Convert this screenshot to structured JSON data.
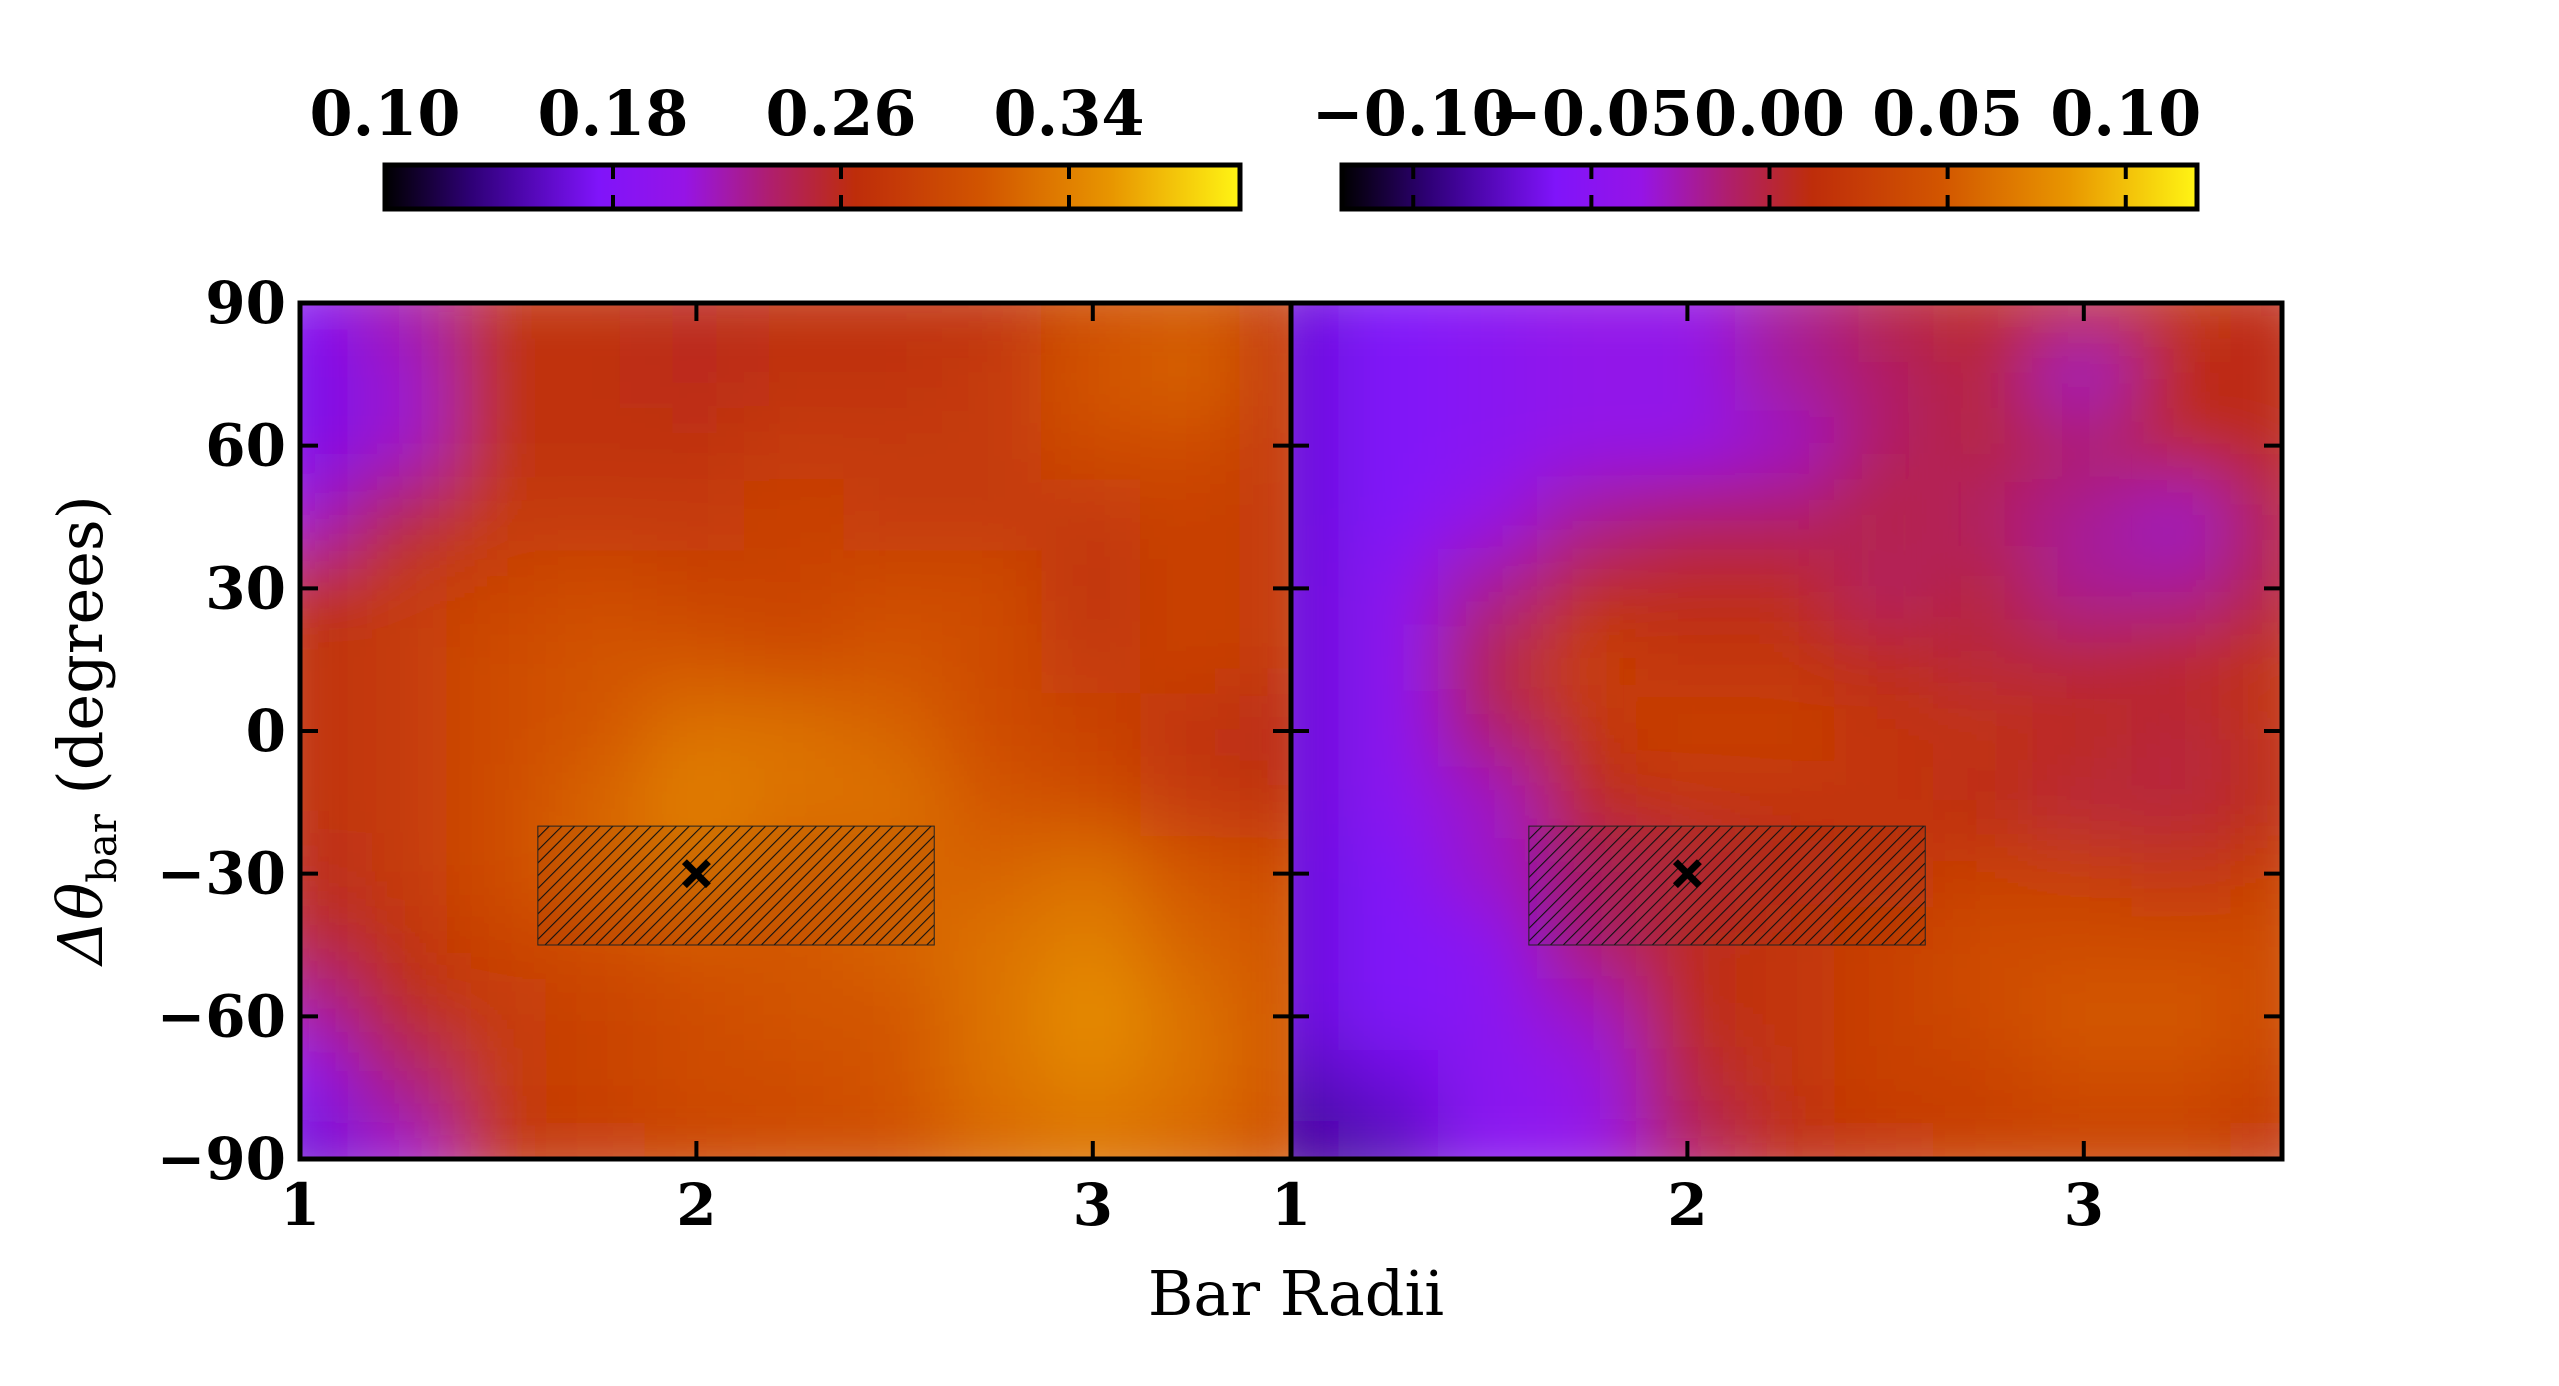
{
  "figure": {
    "xlabel": "Bar Radii",
    "ylabel_main": "Δθ",
    "ylabel_sub": "bar",
    "ylabel_units": " (degrees)"
  },
  "chart_data": [
    {
      "type": "heatmap",
      "panel": "left",
      "xlim": [
        1,
        3.5
      ],
      "ylim": [
        -90,
        90
      ],
      "xticks": [
        1,
        2,
        3
      ],
      "yticks": [
        90,
        60,
        30,
        0,
        -30,
        -60,
        -90
      ],
      "x_tick_labels": [
        "1",
        "2",
        "3"
      ],
      "y_tick_labels": [
        "90",
        "60",
        "30",
        "0",
        "−30",
        "−60",
        "−90"
      ],
      "xlabel": "Bar Radii",
      "ylabel": "Δθbar (degrees)",
      "colormap": "gnuplot",
      "colorbar": {
        "range": [
          0.1,
          0.4
        ],
        "ticks": [
          0.1,
          0.18,
          0.26,
          0.34
        ],
        "tick_labels": [
          "0.10",
          "0.18",
          "0.26",
          "0.34"
        ],
        "location": "top"
      },
      "marker": {
        "x": 2.0,
        "y": -30,
        "symbol": "x"
      },
      "hatched_region": {
        "x": [
          1.6,
          2.6
        ],
        "y": [
          -45,
          -20
        ]
      },
      "x": [
        1.0,
        1.25,
        1.5,
        1.75,
        2.0,
        2.25,
        2.5,
        2.75,
        3.0,
        3.25,
        3.5
      ],
      "y": [
        90,
        75,
        60,
        45,
        30,
        15,
        0,
        -15,
        -30,
        -45,
        -60,
        -75,
        -90
      ],
      "z": [
        [
          0.18,
          0.22,
          0.27,
          0.27,
          0.26,
          0.27,
          0.27,
          0.27,
          0.3,
          0.31,
          0.28
        ],
        [
          0.17,
          0.21,
          0.27,
          0.27,
          0.26,
          0.27,
          0.27,
          0.28,
          0.31,
          0.32,
          0.28
        ],
        [
          0.17,
          0.21,
          0.27,
          0.27,
          0.27,
          0.28,
          0.28,
          0.28,
          0.3,
          0.3,
          0.28
        ],
        [
          0.21,
          0.25,
          0.28,
          0.28,
          0.28,
          0.29,
          0.28,
          0.28,
          0.28,
          0.29,
          0.28
        ],
        [
          0.26,
          0.28,
          0.29,
          0.3,
          0.29,
          0.29,
          0.3,
          0.3,
          0.27,
          0.29,
          0.28
        ],
        [
          0.27,
          0.28,
          0.3,
          0.31,
          0.31,
          0.3,
          0.31,
          0.3,
          0.28,
          0.29,
          0.28
        ],
        [
          0.27,
          0.28,
          0.3,
          0.31,
          0.33,
          0.33,
          0.32,
          0.3,
          0.29,
          0.27,
          0.26
        ],
        [
          0.27,
          0.28,
          0.3,
          0.32,
          0.34,
          0.33,
          0.33,
          0.31,
          0.3,
          0.28,
          0.27
        ],
        [
          0.26,
          0.28,
          0.3,
          0.32,
          0.33,
          0.32,
          0.32,
          0.32,
          0.33,
          0.31,
          0.3
        ],
        [
          0.25,
          0.27,
          0.29,
          0.3,
          0.31,
          0.31,
          0.32,
          0.33,
          0.34,
          0.32,
          0.31
        ],
        [
          0.22,
          0.26,
          0.28,
          0.29,
          0.3,
          0.31,
          0.31,
          0.33,
          0.35,
          0.33,
          0.31
        ],
        [
          0.18,
          0.23,
          0.28,
          0.29,
          0.3,
          0.3,
          0.31,
          0.33,
          0.34,
          0.33,
          0.31
        ],
        [
          0.16,
          0.21,
          0.27,
          0.28,
          0.29,
          0.3,
          0.3,
          0.32,
          0.33,
          0.32,
          0.3
        ]
      ]
    },
    {
      "type": "heatmap",
      "panel": "right",
      "xlim": [
        1,
        3.5
      ],
      "ylim": [
        -90,
        90
      ],
      "xticks": [
        1,
        2,
        3
      ],
      "yticks": [
        90,
        60,
        30,
        0,
        -30,
        -60,
        -90
      ],
      "x_tick_labels": [
        "1",
        "2",
        "3"
      ],
      "xlabel": "Bar Radii",
      "colormap": "gnuplot",
      "colorbar": {
        "range": [
          -0.12,
          0.12
        ],
        "ticks": [
          -0.1,
          -0.05,
          0.0,
          0.05,
          0.1
        ],
        "tick_labels": [
          "−0.10",
          "−0.05",
          "0.00",
          "0.05",
          "0.10"
        ],
        "location": "top"
      },
      "marker": {
        "x": 2.0,
        "y": -30,
        "symbol": "x"
      },
      "hatched_region": {
        "x": [
          1.6,
          2.6
        ],
        "y": [
          -45,
          -20
        ]
      },
      "x": [
        1.0,
        1.25,
        1.5,
        1.75,
        2.0,
        2.25,
        2.5,
        2.75,
        3.0,
        3.25,
        3.5
      ],
      "y": [
        90,
        75,
        60,
        45,
        30,
        15,
        0,
        -15,
        -30,
        -45,
        -60,
        -75,
        -90
      ],
      "z": [
        [
          -0.07,
          -0.06,
          -0.05,
          -0.04,
          -0.04,
          -0.02,
          0.0,
          0.01,
          0.02,
          0.02,
          0.01
        ],
        [
          -0.07,
          -0.06,
          -0.05,
          -0.04,
          -0.04,
          -0.02,
          -0.01,
          0.0,
          -0.03,
          0.01,
          0.01
        ],
        [
          -0.07,
          -0.06,
          -0.05,
          -0.04,
          -0.04,
          -0.03,
          -0.01,
          0.0,
          -0.01,
          0.01,
          0.01
        ],
        [
          -0.07,
          -0.06,
          -0.04,
          -0.02,
          -0.01,
          -0.01,
          0.0,
          -0.01,
          -0.02,
          -0.03,
          0.0
        ],
        [
          -0.07,
          -0.05,
          -0.02,
          0.01,
          0.01,
          0.01,
          -0.01,
          0.0,
          -0.02,
          -0.02,
          0.0
        ],
        [
          -0.07,
          -0.05,
          0.0,
          0.03,
          0.02,
          0.02,
          0.01,
          0.0,
          0.0,
          0.01,
          0.02
        ],
        [
          -0.07,
          -0.05,
          -0.01,
          0.02,
          0.03,
          0.03,
          0.02,
          0.02,
          0.01,
          0.0,
          0.02
        ],
        [
          -0.07,
          -0.05,
          -0.03,
          0.01,
          0.02,
          0.02,
          0.02,
          0.01,
          0.0,
          0.0,
          0.01
        ],
        [
          -0.07,
          -0.06,
          -0.03,
          -0.01,
          0.0,
          0.01,
          0.02,
          0.03,
          0.03,
          0.02,
          0.03
        ],
        [
          -0.07,
          -0.06,
          -0.05,
          -0.01,
          0.01,
          0.02,
          0.03,
          0.04,
          0.04,
          0.04,
          0.04
        ],
        [
          -0.07,
          -0.06,
          -0.05,
          -0.03,
          0.01,
          0.02,
          0.03,
          0.04,
          0.05,
          0.05,
          0.04
        ],
        [
          -0.08,
          -0.07,
          -0.05,
          -0.04,
          0.0,
          0.02,
          0.03,
          0.03,
          0.04,
          0.04,
          0.03
        ],
        [
          -0.09,
          -0.08,
          -0.05,
          -0.04,
          -0.01,
          0.01,
          0.02,
          0.03,
          0.03,
          0.03,
          0.02
        ]
      ]
    }
  ]
}
